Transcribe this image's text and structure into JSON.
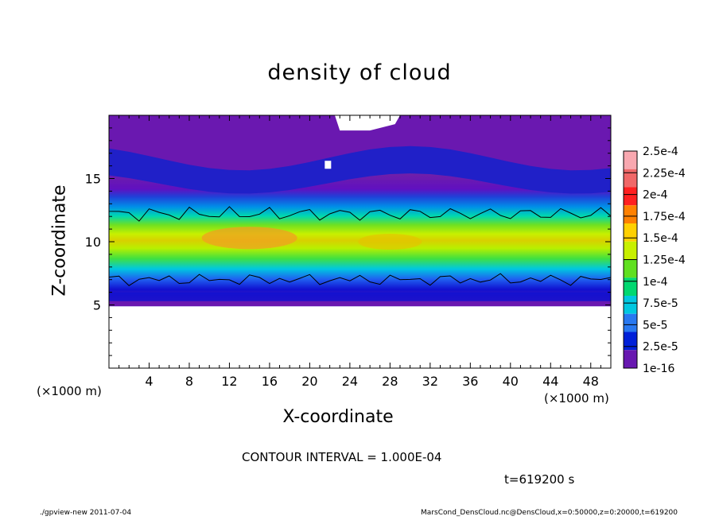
{
  "chart_data": {
    "type": "heatmap",
    "title": "density of cloud",
    "xlabel": "X-coordinate",
    "ylabel": "Z-coordinate",
    "x_unit": "(×1000 m)",
    "z_unit": "(×1000 m)",
    "xlim": [
      0,
      50
    ],
    "ylim": [
      0,
      20
    ],
    "x_ticks": [
      "4",
      "8",
      "12",
      "16",
      "20",
      "24",
      "28",
      "32",
      "36",
      "40",
      "44",
      "48"
    ],
    "y_ticks": [
      "5",
      "10",
      "15"
    ],
    "colorbar": {
      "labels": [
        "2.5e-4",
        "2.25e-4",
        "2e-4",
        "1.75e-4",
        "1.5e-4",
        "1.25e-4",
        "1e-4",
        "7.5e-5",
        "5e-5",
        "2.5e-5",
        "1e-16"
      ],
      "colors": [
        "#f8a8b0",
        "#f06868",
        "#ff2020",
        "#ff8000",
        "#ffd000",
        "#c8f000",
        "#60e020",
        "#00d870",
        "#00c8e0",
        "#2878f0",
        "#0020d8",
        "#6818b0"
      ]
    },
    "contour_interval": "CONTOUR INTERVAL = 1.000E-04",
    "time": "t=619200 s",
    "footer_left": "./gpview-new  2011-07-04",
    "footer_right": "MarsCond_DensCloud.nc@DensCloud,x=0:50000,z=0:20000,t=619200"
  }
}
